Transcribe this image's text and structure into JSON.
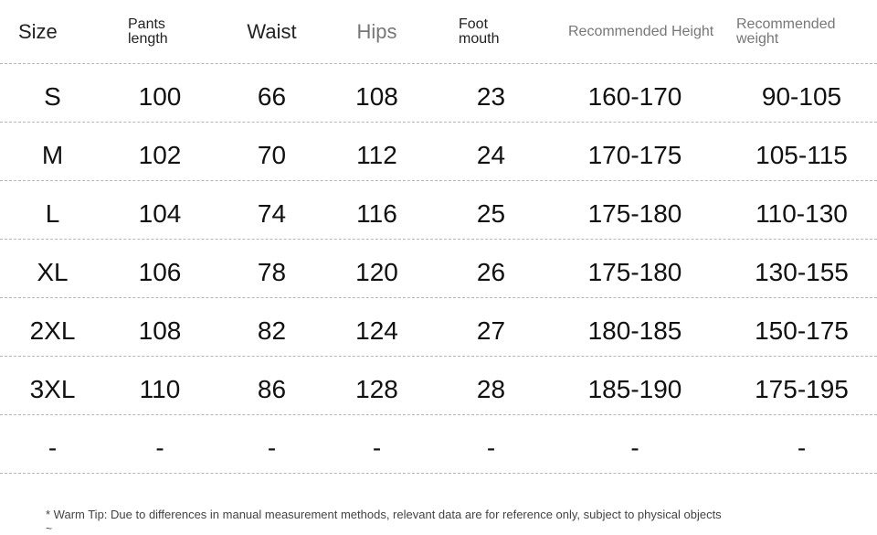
{
  "header": {
    "size": "Size",
    "pants_length": "Pants length",
    "waist": "Waist",
    "hips": "Hips",
    "foot_mouth": "Foot mouth",
    "recommended_height": "Recommended Height",
    "recommended_weight": "Recommended weight"
  },
  "rows": [
    {
      "size": "S",
      "pants_length": "100",
      "waist": "66",
      "hips": "108",
      "foot_mouth": "23",
      "height": "160-170",
      "weight": "90-105"
    },
    {
      "size": "M",
      "pants_length": "102",
      "waist": "70",
      "hips": "112",
      "foot_mouth": "24",
      "height": "170-175",
      "weight": "105-115"
    },
    {
      "size": "L",
      "pants_length": "104",
      "waist": "74",
      "hips": "116",
      "foot_mouth": "25",
      "height": "175-180",
      "weight": "110-130"
    },
    {
      "size": "XL",
      "pants_length": "106",
      "waist": "78",
      "hips": "120",
      "foot_mouth": "26",
      "height": "175-180",
      "weight": "130-155"
    },
    {
      "size": "2XL",
      "pants_length": "108",
      "waist": "82",
      "hips": "124",
      "foot_mouth": "27",
      "height": "180-185",
      "weight": "150-175"
    },
    {
      "size": "3XL",
      "pants_length": "110",
      "waist": "86",
      "hips": "128",
      "foot_mouth": "28",
      "height": "185-190",
      "weight": "175-195"
    },
    {
      "size": "-",
      "pants_length": "-",
      "waist": "-",
      "hips": "-",
      "foot_mouth": "-",
      "height": "-",
      "weight": "-"
    }
  ],
  "tip": "* Warm Tip: Due to differences in manual measurement methods, relevant data are for reference only, subject to physical objects",
  "tip_tail": "~"
}
